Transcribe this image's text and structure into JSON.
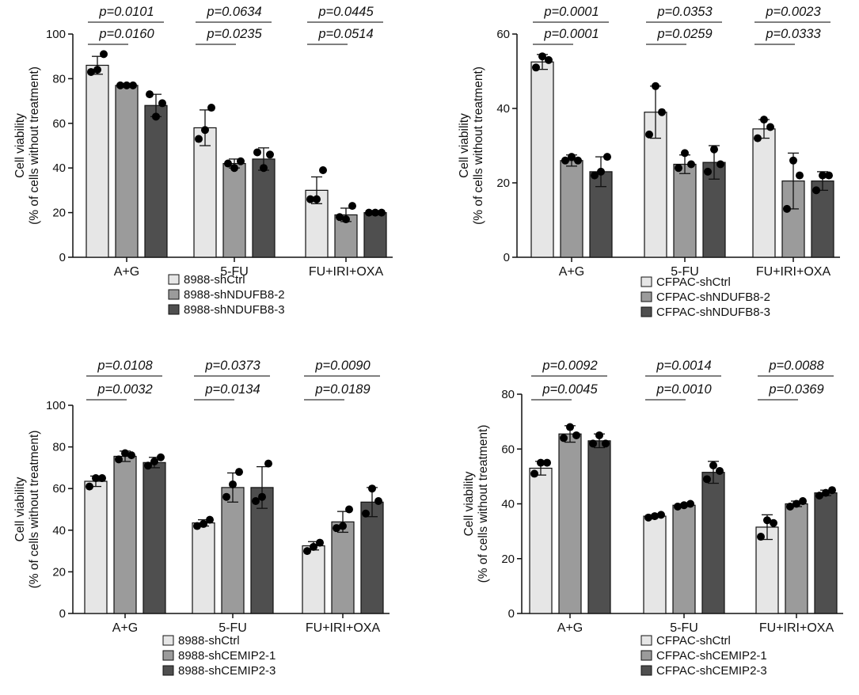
{
  "chart_data": [
    {
      "type": "bar",
      "ylabel": [
        "Cell viability",
        "(% of cells without treatment)"
      ],
      "ylim": [
        0,
        100
      ],
      "yticks": [
        0,
        20,
        40,
        60,
        80,
        100
      ],
      "categories": [
        "A+G",
        "5-FU",
        "FU+IRI+OXA"
      ],
      "series": [
        {
          "name": "8988-shCtrl",
          "color": "#e6e6e6",
          "values": [
            86,
            58,
            30
          ],
          "sd": [
            4,
            8,
            6
          ],
          "points": [
            [
              83,
              84,
              91
            ],
            [
              53,
              57,
              67
            ],
            [
              26,
              26,
              39
            ]
          ]
        },
        {
          "name": "8988-shNDUFB8-2",
          "color": "#9b9b9b",
          "values": [
            77,
            42,
            19
          ],
          "sd": [
            0.5,
            2,
            3
          ],
          "points": [
            [
              77,
              77,
              77
            ],
            [
              42,
              40,
              43
            ],
            [
              18,
              17,
              23
            ]
          ]
        },
        {
          "name": "8988-shNDUFB8-3",
          "color": "#4f4f4f",
          "values": [
            68,
            44,
            20
          ],
          "sd": [
            5,
            5,
            0.5
          ],
          "points": [
            [
              73,
              63,
              69
            ],
            [
              47,
              40,
              46
            ],
            [
              20,
              20,
              20
            ]
          ]
        }
      ],
      "pvalues_upper": [
        "p=0.0101",
        "p=0.0634",
        "p=0.0445"
      ],
      "pvalues_lower": [
        "p=0.0160",
        "p=0.0235",
        "p=0.0514"
      ]
    },
    {
      "type": "bar",
      "ylabel": [
        "Cell viability",
        "(% of cells without treatment)"
      ],
      "ylim": [
        0,
        60
      ],
      "yticks": [
        0,
        20,
        40,
        60
      ],
      "categories": [
        "A+G",
        "5-FU",
        "FU+IRI+OXA"
      ],
      "series": [
        {
          "name": "CFPAC-shCtrl",
          "color": "#e6e6e6",
          "values": [
            52.5,
            39,
            34.5
          ],
          "sd": [
            2,
            7,
            2.5
          ],
          "points": [
            [
              51,
              54,
              53
            ],
            [
              33,
              46,
              39
            ],
            [
              32,
              37,
              35
            ]
          ]
        },
        {
          "name": "CFPAC-shNDUFB8-2",
          "color": "#9b9b9b",
          "values": [
            26,
            25,
            20.5
          ],
          "sd": [
            1.5,
            2.5,
            7.5
          ],
          "points": [
            [
              26,
              27,
              26
            ],
            [
              24,
              28,
              25
            ],
            [
              13,
              26,
              22
            ]
          ]
        },
        {
          "name": "CFPAC-shNDUFB8-3",
          "color": "#4f4f4f",
          "values": [
            23,
            25.5,
            20.5
          ],
          "sd": [
            4,
            4.5,
            2.5
          ],
          "points": [
            [
              22,
              23,
              27
            ],
            [
              23,
              29,
              25
            ],
            [
              18,
              22,
              22
            ]
          ]
        }
      ],
      "pvalues_upper": [
        "p=0.0001",
        "p=0.0353",
        "p=0.0023"
      ],
      "pvalues_lower": [
        "p=0.0001",
        "p=0.0259",
        "p=0.0333"
      ]
    },
    {
      "type": "bar",
      "ylabel": [
        "Cell viability",
        "(% of cells without treatment)"
      ],
      "ylim": [
        0,
        100
      ],
      "yticks": [
        0,
        20,
        40,
        60,
        80,
        100
      ],
      "categories": [
        "A+G",
        "5-FU",
        "FU+IRI+OXA"
      ],
      "series": [
        {
          "name": "8988-shCtrl",
          "color": "#e6e6e6",
          "values": [
            63.5,
            43.5,
            32.5
          ],
          "sd": [
            2.5,
            1.5,
            2
          ],
          "points": [
            [
              61,
              65,
              65
            ],
            [
              42,
              43,
              45
            ],
            [
              30,
              32,
              34
            ]
          ]
        },
        {
          "name": "8988-shCEMIP2-1",
          "color": "#9b9b9b",
          "values": [
            75.5,
            60.5,
            44
          ],
          "sd": [
            2.5,
            7,
            5
          ],
          "points": [
            [
              74,
              77,
              76
            ],
            [
              56,
              62,
              68
            ],
            [
              41,
              42,
              50
            ]
          ]
        },
        {
          "name": "8988-shCEMIP2-3",
          "color": "#4f4f4f",
          "values": [
            72.5,
            60.5,
            53.5
          ],
          "sd": [
            2.5,
            10,
            7
          ],
          "points": [
            [
              71,
              73,
              75
            ],
            [
              54,
              56,
              72
            ],
            [
              48,
              60,
              54
            ]
          ]
        }
      ],
      "pvalues_upper": [
        "p=0.0108",
        "p=0.0373",
        "p=0.0090"
      ],
      "pvalues_lower": [
        "p=0.0032",
        "p=0.0134",
        "p=0.0189"
      ]
    },
    {
      "type": "bar",
      "ylabel": [
        "Cell viability",
        "(% of cells without treatment)"
      ],
      "ylim": [
        0,
        80
      ],
      "yticks": [
        0,
        20,
        40,
        60,
        80
      ],
      "categories": [
        "A+G",
        "5-FU",
        "FU+IRI+OXA"
      ],
      "series": [
        {
          "name": "CFPAC-shCtrl",
          "color": "#e6e6e6",
          "values": [
            53,
            35.5,
            31.5
          ],
          "sd": [
            2.5,
            0.5,
            4.5
          ],
          "points": [
            [
              51,
              55,
              55
            ],
            [
              35,
              35.5,
              36
            ],
            [
              28,
              34,
              33
            ]
          ]
        },
        {
          "name": "CFPAC-shCEMIP2-1",
          "color": "#9b9b9b",
          "values": [
            65.5,
            39.5,
            40
          ],
          "sd": [
            3,
            0.5,
            1
          ],
          "points": [
            [
              64,
              68,
              65
            ],
            [
              39,
              39.5,
              40
            ],
            [
              39,
              40,
              41
            ]
          ]
        },
        {
          "name": "CFPAC-shCEMIP2-3",
          "color": "#4f4f4f",
          "values": [
            63,
            51.5,
            44
          ],
          "sd": [
            2.5,
            4,
            1
          ],
          "points": [
            [
              62,
              65,
              62
            ],
            [
              49,
              54,
              52
            ],
            [
              43,
              44,
              45
            ]
          ]
        }
      ],
      "pvalues_upper": [
        "p=0.0092",
        "p=0.0014",
        "p=0.0088"
      ],
      "pvalues_lower": [
        "p=0.0045",
        "p=0.0010",
        "p=0.0369"
      ]
    }
  ]
}
